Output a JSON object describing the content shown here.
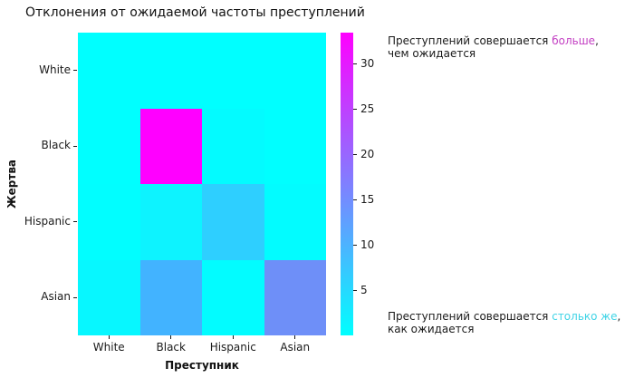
{
  "title": "Отклонения от ожидаемой частоты преступлений",
  "chart_data": {
    "type": "heatmap",
    "title": "Отклонения от ожидаемой частоты преступлений",
    "xlabel": "Преступник",
    "ylabel": "Жертва",
    "x_categories": [
      "White",
      "Black",
      "Hispanic",
      "Asian"
    ],
    "y_categories": [
      "White",
      "Black",
      "Hispanic",
      "Asian"
    ],
    "values": [
      [
        0.1,
        0.3,
        0.1,
        0.1
      ],
      [
        0.2,
        33.3,
        0.9,
        0.3
      ],
      [
        0.2,
        1.7,
        6.3,
        0.4
      ],
      [
        1.3,
        8.7,
        0.3,
        14.8
      ]
    ],
    "cell_colors": [
      [
        "#00ffff",
        "#00ffff",
        "#00ffff",
        "#00ffff"
      ],
      [
        "#00ffff",
        "#ff00ff",
        "#03fbff",
        "#00ffff"
      ],
      [
        "#01feff",
        "#0df3ff",
        "#2ecfff",
        "#02fcff"
      ],
      [
        "#07f7ff",
        "#42b3ff",
        "#02fcff",
        "#6e8ff8"
      ]
    ],
    "colormap": "cool",
    "colorbar": {
      "min": 0,
      "max": 33.4,
      "ticks": [
        5,
        10,
        15,
        20,
        25,
        30
      ],
      "gradient_bottom": "#00ffff",
      "gradient_top": "#ff00ff"
    },
    "grid": false,
    "legend_position": "none"
  },
  "annotations": {
    "top": {
      "prefix": "Преступлений совершается ",
      "highlight": "больше",
      "highlight_color": "#c33fc3",
      "suffix": ",",
      "line2": "чем ожидается"
    },
    "bottom": {
      "prefix": "Преступлений совершается ",
      "highlight": "столько же",
      "highlight_color": "#40d4e6",
      "suffix": ",",
      "line2": "как ожидается"
    }
  }
}
